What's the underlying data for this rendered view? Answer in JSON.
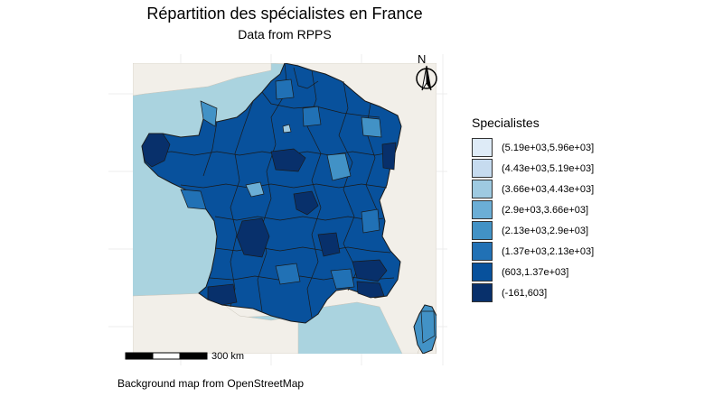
{
  "title": "Répartition des spécialistes en France",
  "subtitle": "Data from RPPS",
  "caption": "Background map from OpenStreetMap",
  "scale_bar": {
    "label": "300 km"
  },
  "north_arrow": {
    "label": "N"
  },
  "legend": {
    "title": "Specialistes",
    "items": [
      {
        "label": "(5.19e+03,5.96e+03]",
        "color": "#deebf7"
      },
      {
        "label": "(4.43e+03,5.19e+03]",
        "color": "#c6dbef"
      },
      {
        "label": "(3.66e+03,4.43e+03]",
        "color": "#9ecae1"
      },
      {
        "label": "(2.9e+03,3.66e+03]",
        "color": "#6baed6"
      },
      {
        "label": "(2.13e+03,2.9e+03]",
        "color": "#4292c6"
      },
      {
        "label": "(1.37e+03,2.13e+03]",
        "color": "#2171b5"
      },
      {
        "label": "(603,1.37e+03]",
        "color": "#08519c"
      },
      {
        "label": "(-161,603]",
        "color": "#08306b"
      }
    ]
  },
  "colors": {
    "sea": "#aad3df",
    "land": "#f2efe9",
    "border": "#1a1a1a"
  }
}
